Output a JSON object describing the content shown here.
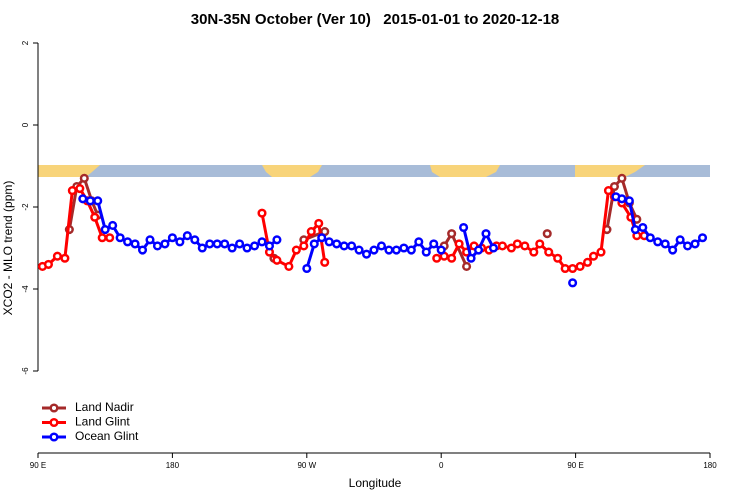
{
  "chart_data": {
    "type": "line",
    "title": "30N-35N October (Ver 10)   2015-01-01 to 2020-12-18",
    "xlabel": "Longitude",
    "ylabel": "XCO2 - MLO trend (ppm)",
    "xlim": [
      90,
      540
    ],
    "ylim": [
      -8,
      2
    ],
    "xticks": [
      {
        "value": 90,
        "label": "90 E"
      },
      180,
      {
        "value": 270,
        "label": "90 W"
      },
      {
        "value": 360,
        "label": "0"
      },
      {
        "value": 450,
        "label": "90 E"
      },
      {
        "value": 540,
        "label": "180"
      }
    ],
    "yticks": [
      -6,
      -4,
      -2,
      0,
      2
    ],
    "legend": "bottom-left",
    "series": [
      {
        "name": "Land Nadir",
        "color": "#a52a2a",
        "x": [
          111,
          116,
          121,
          126,
          130,
          200,
          248,
          258,
          268,
          282,
          330,
          362,
          367,
          377,
          400,
          431,
          450,
          471,
          476,
          481,
          486,
          491
        ],
        "values": [
          -2.55,
          -1.5,
          -1.3,
          -1.85,
          -2.2,
          null,
          -3.25,
          null,
          -2.8,
          -2.6,
          null,
          -2.95,
          -2.65,
          -3.45,
          null,
          -2.65,
          null,
          -2.55,
          -1.5,
          -1.3,
          -1.9,
          -2.3
        ]
      },
      {
        "name": "Land Glint",
        "color": "#ff0000",
        "x": [
          93,
          97,
          103,
          108,
          113,
          118,
          123,
          128,
          133,
          138,
          200,
          240,
          245,
          250,
          258,
          263,
          268,
          273,
          278,
          282,
          330,
          357,
          362,
          367,
          372,
          377,
          382,
          387,
          392,
          397,
          401,
          407,
          411,
          416,
          422,
          426,
          432,
          438,
          443,
          448,
          453,
          458,
          462,
          467,
          472,
          476,
          481,
          487,
          491,
          496
        ],
        "values": [
          -3.45,
          -3.4,
          -3.2,
          -3.25,
          -1.6,
          -1.55,
          -1.85,
          -2.25,
          -2.75,
          -2.75,
          null,
          -2.15,
          -3.1,
          -3.3,
          -3.45,
          -3.05,
          -2.95,
          -2.6,
          -2.4,
          -3.35,
          null,
          -3.25,
          -3.2,
          -3.25,
          -2.9,
          -3.1,
          -2.95,
          -3.0,
          -3.05,
          -2.95,
          -2.95,
          -3.0,
          -2.9,
          -2.95,
          -3.1,
          -2.9,
          -3.1,
          -3.25,
          -3.5,
          -3.5,
          -3.45,
          -3.35,
          -3.2,
          -3.1,
          -1.6,
          -1.75,
          -1.9,
          -2.25,
          -2.7,
          -2.7
        ]
      },
      {
        "name": "Ocean Glint",
        "color": "#0000ff",
        "x": [
          120,
          125,
          130,
          135,
          140,
          145,
          150,
          155,
          160,
          165,
          170,
          175,
          180,
          185,
          190,
          195,
          200,
          205,
          210,
          215,
          220,
          225,
          230,
          235,
          240,
          245,
          250,
          260,
          270,
          275,
          280,
          285,
          290,
          295,
          300,
          305,
          310,
          315,
          320,
          325,
          330,
          335,
          340,
          345,
          350,
          355,
          360,
          367,
          375,
          380,
          385,
          390,
          395,
          420,
          448,
          460,
          477,
          481,
          486,
          490,
          495,
          500,
          505,
          510,
          515,
          520,
          525,
          530,
          535
        ],
        "values": [
          -1.8,
          -1.85,
          -1.85,
          -2.55,
          -2.45,
          -2.75,
          -2.85,
          -2.9,
          -3.05,
          -2.8,
          -2.95,
          -2.9,
          -2.75,
          -2.85,
          -2.7,
          -2.8,
          -3.0,
          -2.9,
          -2.9,
          -2.9,
          -3.0,
          -2.9,
          -3.0,
          -2.95,
          -2.85,
          -2.95,
          -2.8,
          null,
          -3.5,
          -2.9,
          -2.75,
          -2.85,
          -2.9,
          -2.95,
          -2.95,
          -3.05,
          -3.15,
          -3.05,
          -2.95,
          -3.05,
          -3.05,
          -3.0,
          -3.05,
          -2.85,
          -3.1,
          -2.9,
          -3.05,
          null,
          -2.5,
          -3.25,
          -3.05,
          -2.65,
          -3.0,
          null,
          -3.85,
          null,
          -1.75,
          -1.8,
          -1.85,
          -2.55,
          -2.5,
          -2.75,
          -2.85,
          -2.9,
          -3.05,
          -2.8,
          -2.95,
          -2.9,
          -2.75
        ]
      }
    ]
  }
}
